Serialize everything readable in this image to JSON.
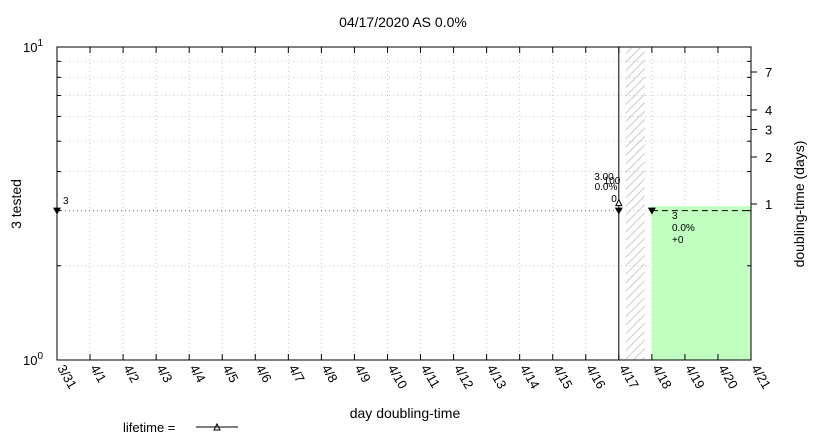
{
  "chart_data": {
    "type": "line",
    "title": "04/17/2020 AS 0.0%",
    "xlabel": "day doubling-time",
    "ylabel_left": "3 tested",
    "ylabel_right": "doubling-time (days)",
    "categories": [
      "3/31",
      "4/1",
      "4/2",
      "4/3",
      "4/4",
      "4/5",
      "4/6",
      "4/7",
      "4/8",
      "4/9",
      "4/10",
      "4/11",
      "4/12",
      "4/13",
      "4/14",
      "4/15",
      "4/16",
      "4/17",
      "4/18",
      "4/19",
      "4/20",
      "4/21"
    ],
    "y_scale": "log",
    "ylim": [
      1,
      10
    ],
    "y_ticks": [
      {
        "base": "10",
        "exp": "0",
        "value": 1
      },
      {
        "base": "10",
        "exp": "1",
        "value": 10
      }
    ],
    "y2_scale": "log",
    "y2_ticks": [
      "1",
      "2",
      "3",
      "4",
      "7"
    ],
    "y2_values": [
      1,
      2,
      3,
      4,
      7
    ],
    "grid": true,
    "series": [
      {
        "points": [
          {
            "x": "3/31",
            "y": 3,
            "label": "3"
          },
          {
            "x": "4/17",
            "y": 3
          },
          {
            "x": "4/18",
            "y": 3
          }
        ]
      }
    ],
    "annotations": {
      "left_point_label": "3",
      "mid_labels": [
        "3.00",
        "100",
        "0.0%",
        "0"
      ],
      "right_labels": [
        "3",
        "0.0%",
        "+0"
      ]
    },
    "vertical_line_at": "4/17",
    "hatched_region": [
      "4/17",
      "4/18"
    ],
    "projection_region": {
      "from": "4/18",
      "to": "4/21",
      "y_top": 3.1,
      "color": "#c0ffc0"
    },
    "legend": {
      "label": "lifetime =",
      "position": "bottom-left"
    }
  }
}
